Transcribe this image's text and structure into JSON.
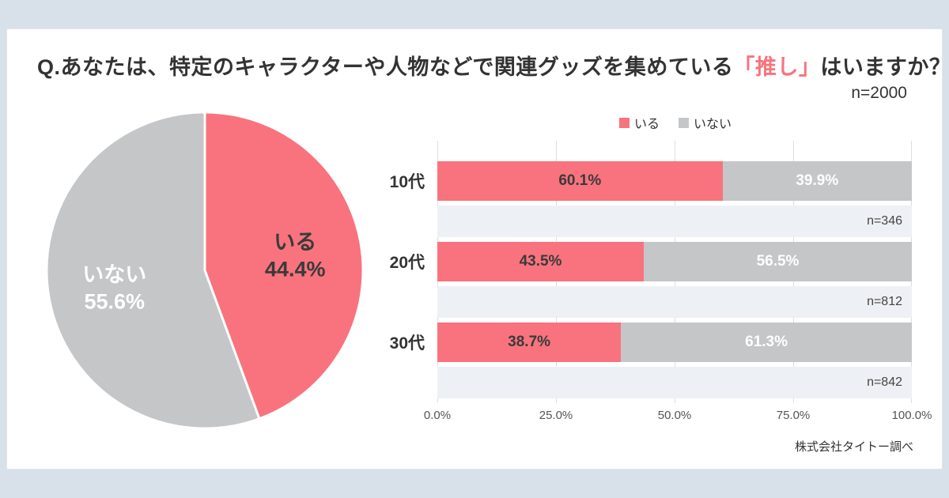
{
  "colors": {
    "accent": "#F8737D",
    "gray": "#C5C6C8",
    "band": "#EDF0F4",
    "background": "#D8E0EA",
    "gridline": "#DADEE4"
  },
  "title": {
    "prefix": "Q.あなたは、特定のキャラクターや人物などで関連グッズを集めている",
    "highlight": "「推し」",
    "suffix": "はいますか？",
    "sample_size": "n=2000"
  },
  "chart_data": [
    {
      "type": "pie",
      "labels": [
        "いる",
        "いない"
      ],
      "values": [
        44.4,
        55.6
      ],
      "value_labels": [
        "44.4%",
        "55.6%"
      ],
      "colors": [
        "#F8737D",
        "#C5C6C8"
      ],
      "text_colors": [
        "#3A3A3A",
        "#FFFFFF"
      ],
      "start_angle_deg": -90,
      "direction": "clockwise"
    },
    {
      "type": "bar",
      "orientation": "horizontal",
      "stacked": true,
      "categories": [
        "10代",
        "20代",
        "30代"
      ],
      "series": [
        {
          "name": "いる",
          "color": "#F8737D",
          "text_color": "#3A3A3A",
          "values": [
            60.1,
            43.5,
            38.7
          ]
        },
        {
          "name": "いない",
          "color": "#C5C6C8",
          "text_color": "#FFFFFF",
          "values": [
            39.9,
            56.5,
            61.3
          ]
        }
      ],
      "value_labels": [
        [
          "60.1%",
          "39.9%"
        ],
        [
          "43.5%",
          "56.5%"
        ],
        [
          "38.7%",
          "61.3%"
        ]
      ],
      "sample_sizes": [
        "n=346",
        "n=812",
        "n=842"
      ],
      "x_ticks": [
        {
          "pos": 0,
          "label": "0.0%"
        },
        {
          "pos": 25,
          "label": "25.0%"
        },
        {
          "pos": 50,
          "label": "50.0%"
        },
        {
          "pos": 75,
          "label": "75.0%"
        },
        {
          "pos": 100,
          "label": "100.0%"
        }
      ],
      "xlim": [
        0,
        100
      ],
      "legend": [
        "いる",
        "いない"
      ],
      "legend_position": "top",
      "grid": true
    }
  ],
  "footer": {
    "source": "株式会社タイトー調べ"
  }
}
